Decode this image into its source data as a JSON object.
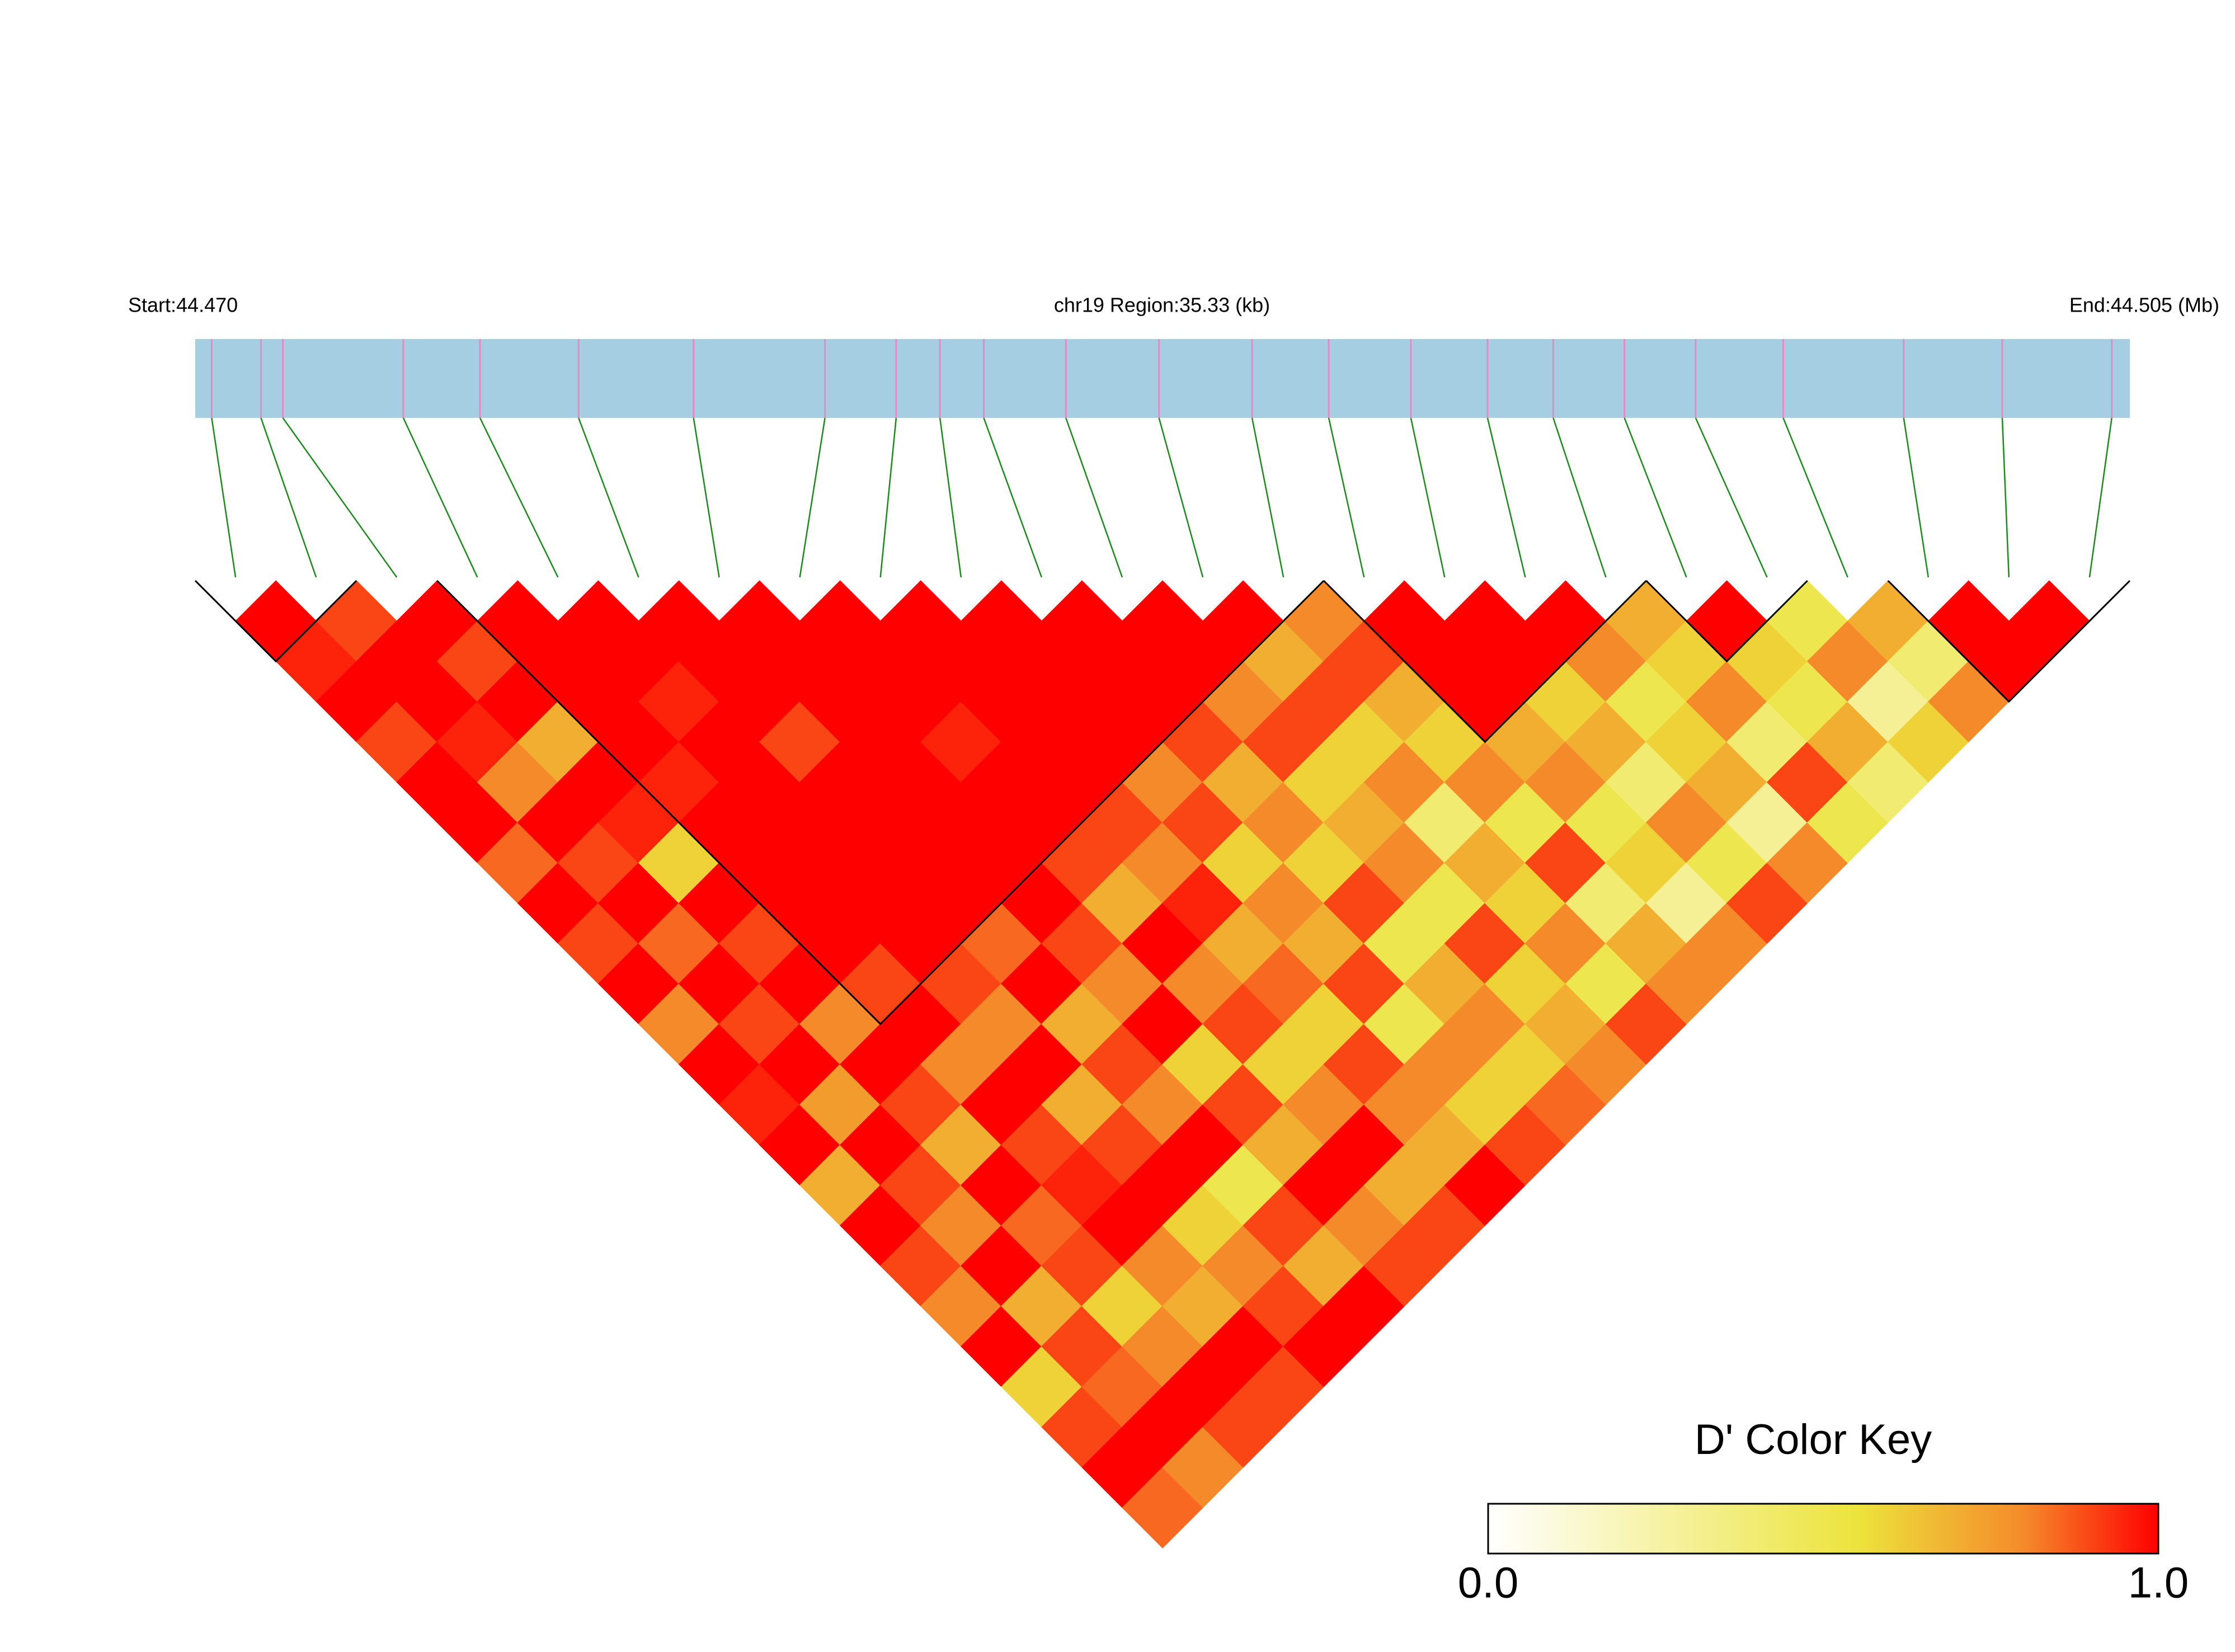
{
  "chart_data": {
    "type": "ld-heatmap",
    "start_label": "Start:44.470",
    "region_label": "chr19 Region:35.33 (kb)",
    "end_label": "End:44.505 (Mb)",
    "xlim": [
      0,
      35.33
    ],
    "positions": [
      0.3,
      1.2,
      1.6,
      3.8,
      5.2,
      7.0,
      9.1,
      11.5,
      12.8,
      13.6,
      14.4,
      15.9,
      17.6,
      19.3,
      20.7,
      22.2,
      23.6,
      24.8,
      26.1,
      27.4,
      29.0,
      31.2,
      33.0,
      35.0
    ],
    "ld": [
      [
        1,
        0.95,
        1,
        0.9,
        1,
        1,
        0.85,
        1,
        0.9,
        1,
        0.8,
        1,
        0.95,
        1,
        0.7,
        1,
        0.9,
        0.8,
        1,
        0.6,
        0.9,
        1,
        0.85
      ],
      [
        0.9,
        1,
        1,
        0.95,
        0.8,
        1,
        0.9,
        1,
        0.85,
        1,
        0.9,
        1,
        0.75,
        1,
        0.9,
        0.8,
        1,
        0.7,
        0.9,
        0.85,
        1,
        0.8
      ],
      [
        1,
        0.9,
        1,
        0.7,
        1,
        0.95,
        0.6,
        1,
        0.9,
        1,
        0.8,
        1,
        0.9,
        0.7,
        1,
        0.85,
        0.9,
        0.6,
        0.8,
        1,
        0.9
      ],
      [
        1,
        1,
        1,
        1,
        0.95,
        1,
        1,
        1,
        1,
        0.9,
        1,
        0.8,
        1,
        0.9,
        0.95,
        1,
        0.8,
        0.7,
        1,
        0.9
      ],
      [
        1,
        1,
        0.95,
        1,
        1,
        1,
        1,
        1,
        1,
        0.9,
        0.8,
        1,
        0.7,
        0.9,
        1,
        0.6,
        0.8,
        0.9,
        1
      ],
      [
        1,
        1,
        1,
        0.9,
        1,
        1,
        1,
        1,
        0.85,
        1,
        0.7,
        0.9,
        0.8,
        1,
        0.5,
        0.9,
        0.7,
        1
      ],
      [
        1,
        1,
        1,
        1,
        1,
        1,
        1,
        1,
        0.9,
        0.8,
        1,
        0.6,
        0.9,
        0.7,
        1,
        0.8,
        0.9
      ],
      [
        1,
        1,
        1,
        0.95,
        1,
        1,
        0.9,
        0.7,
        1,
        0.8,
        0.9,
        0.6,
        0.8,
        1,
        0.7,
        0.9
      ],
      [
        1,
        1,
        1,
        1,
        1,
        0.9,
        0.8,
        0.95,
        0.7,
        0.85,
        0.6,
        0.9,
        0.8,
        0.7,
        1
      ],
      [
        1,
        1,
        1,
        1,
        0.8,
        0.9,
        0.6,
        0.8,
        0.7,
        0.9,
        0.5,
        0.8,
        0.6,
        0.9
      ],
      [
        1,
        1,
        1,
        0.9,
        0.7,
        0.8,
        0.6,
        0.9,
        0.5,
        0.7,
        0.8,
        0.6,
        0.85
      ],
      [
        1,
        1,
        0.8,
        0.9,
        0.6,
        0.7,
        0.8,
        0.5,
        0.9,
        0.6,
        0.7,
        0.8
      ],
      [
        1,
        0.7,
        0.9,
        0.6,
        0.8,
        0.4,
        0.7,
        0.6,
        0.8,
        0.5,
        0.9
      ],
      [
        0.8,
        0.9,
        0.7,
        0.6,
        0.8,
        0.5,
        0.9,
        0.4,
        0.7,
        0.8
      ],
      [
        1,
        1,
        1,
        0.7,
        0.8,
        0.5,
        0.6,
        0.3,
        0.8
      ],
      [
        1,
        1,
        0.6,
        0.7,
        0.4,
        0.8,
        0.5,
        0.9
      ],
      [
        1,
        0.8,
        0.5,
        0.6,
        0.7,
        0.3,
        0.8
      ],
      [
        0.7,
        0.6,
        0.8,
        0.4,
        0.9,
        0.5
      ],
      [
        1,
        0.6,
        0.5,
        0.7,
        0.4
      ],
      [
        0.5,
        0.8,
        0.3,
        0.6
      ],
      [
        0.7,
        0.4,
        0.8
      ],
      [
        1,
        1
      ],
      [
        1
      ]
    ],
    "blocks": [
      [
        0,
        1
      ],
      [
        3,
        13
      ],
      [
        14,
        17
      ],
      [
        18,
        19
      ],
      [
        21,
        23
      ]
    ],
    "colorscale": [
      [
        0,
        "#ffffff"
      ],
      [
        0.55,
        "#ece43c"
      ],
      [
        0.8,
        "#f58a2a"
      ],
      [
        1,
        "#ff0000"
      ]
    ],
    "colorbar_title": "D' Color Key",
    "clim": [
      0,
      1
    ],
    "cticks": [
      {
        "value": 0,
        "label": "0.0"
      },
      {
        "value": 1,
        "label": "1.0"
      }
    ]
  }
}
